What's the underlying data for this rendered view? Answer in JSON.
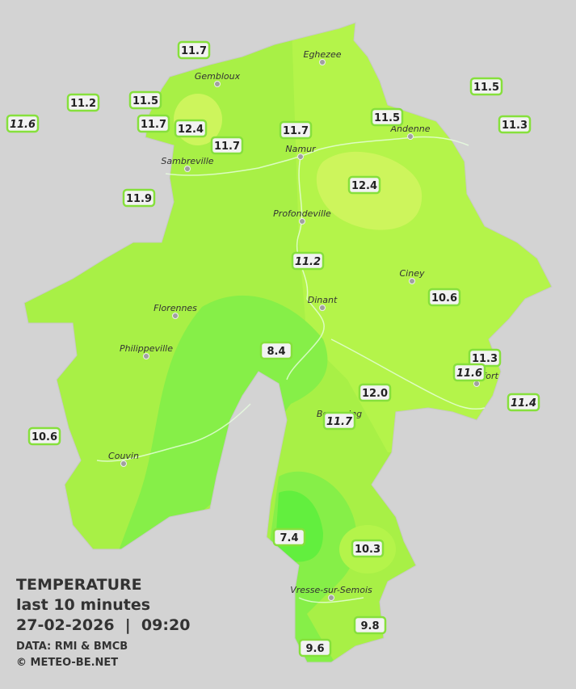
{
  "title": {
    "heading": "TEMPERATURE",
    "period": "last 10 minutes",
    "datetime": "27-02-2026  |  09:20",
    "source": "DATA: RMI & BMCB",
    "credit": "© METEO-BE.NET"
  },
  "cities": [
    "Eghezee",
    "Gembloux",
    "Andenne",
    "Namur",
    "Sambreville",
    "Profondeville",
    "Ciney",
    "Dinant",
    "Florennes",
    "Philippeville",
    "Rochefort",
    "Beauraing",
    "Couvin",
    "Vresse-sur-Semois"
  ],
  "stations": [
    "11.7",
    "11.2",
    "11.5",
    "11.6",
    "11.7",
    "12.4",
    "11.7",
    "11.7",
    "11.5",
    "11.5",
    "11.3",
    "11.9",
    "12.4",
    "11.2",
    "10.6",
    "8.4",
    "11.3",
    "11.6",
    "11.4",
    "12.0",
    "11.7",
    "10.6",
    "7.4",
    "10.3",
    "9.8",
    "9.6"
  ]
}
